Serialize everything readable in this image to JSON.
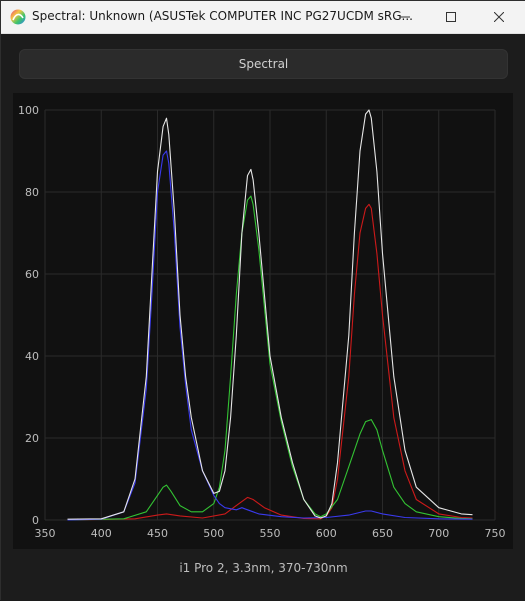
{
  "window": {
    "title": "Spectral: Unknown (ASUSTek COMPUTER INC PG27UCDM sRG..."
  },
  "toolbar": {
    "spectral_label": "Spectral"
  },
  "footer": {
    "caption": "i1 Pro 2, 3.3nm, 370-730nm"
  },
  "colors": {
    "background": "#111111",
    "grid": "#2a2a2a",
    "total": "#e6e6e6",
    "red": "#cc1a1a",
    "green": "#33c233",
    "blue": "#3a3aee"
  },
  "chart_data": {
    "type": "line",
    "title": "",
    "xlabel": "",
    "ylabel": "",
    "xlim": [
      350,
      750
    ],
    "ylim": [
      0,
      100
    ],
    "xticks": [
      350,
      400,
      450,
      500,
      550,
      600,
      650,
      700,
      750
    ],
    "yticks": [
      0,
      20,
      40,
      60,
      80,
      100
    ],
    "grid": true,
    "legend": "none",
    "series": [
      {
        "color": "#e6e6e6",
        "x": [
          370,
          400,
          420,
          430,
          440,
          445,
          450,
          455,
          458,
          460,
          465,
          470,
          475,
          480,
          490,
          500,
          505,
          510,
          515,
          520,
          525,
          530,
          533,
          535,
          540,
          545,
          550,
          560,
          570,
          580,
          590,
          595,
          600,
          605,
          610,
          620,
          625,
          630,
          635,
          638,
          640,
          645,
          650,
          660,
          670,
          680,
          700,
          720,
          730
        ],
        "y": [
          0.2,
          0.3,
          2,
          10,
          35,
          60,
          85,
          96,
          98,
          94,
          75,
          50,
          35,
          25,
          12,
          6.5,
          7,
          12,
          25,
          45,
          70,
          84,
          85.5,
          83,
          70,
          55,
          40,
          25,
          14,
          5,
          1,
          0.5,
          1,
          4,
          14,
          45,
          70,
          90,
          99,
          100,
          98,
          85,
          65,
          35,
          17,
          8,
          3,
          1.5,
          1.3
        ]
      },
      {
        "color": "#cc1a1a",
        "x": [
          370,
          430,
          450,
          458,
          470,
          490,
          510,
          520,
          530,
          535,
          545,
          560,
          580,
          595,
          600,
          605,
          610,
          620,
          625,
          630,
          635,
          638,
          640,
          645,
          650,
          660,
          670,
          680,
          700,
          720,
          730
        ],
        "y": [
          0,
          0.3,
          1.2,
          1.5,
          1.0,
          0.5,
          1.5,
          3.5,
          5.5,
          5.0,
          3.0,
          1.2,
          0.4,
          0.3,
          1,
          3,
          10,
          35,
          55,
          70,
          76,
          77,
          76,
          65,
          50,
          25,
          12,
          5,
          1.5,
          0.6,
          0.5
        ]
      },
      {
        "color": "#33c233",
        "x": [
          370,
          420,
          440,
          450,
          455,
          458,
          462,
          470,
          480,
          490,
          500,
          505,
          510,
          515,
          520,
          525,
          530,
          533,
          535,
          540,
          545,
          550,
          560,
          570,
          580,
          590,
          595,
          600,
          610,
          620,
          630,
          635,
          640,
          645,
          650,
          660,
          670,
          680,
          700,
          720,
          730
        ],
        "y": [
          0,
          0.3,
          2,
          6,
          8,
          8.5,
          7,
          3.5,
          2,
          2,
          4,
          8,
          17,
          35,
          55,
          70,
          78,
          79,
          77,
          66,
          52,
          38,
          24,
          13,
          5,
          1.5,
          0.8,
          1.5,
          5,
          13,
          21,
          24,
          24.5,
          22,
          17,
          8,
          4,
          2,
          0.8,
          0.4,
          0.3
        ]
      },
      {
        "color": "#3a3aee",
        "x": [
          370,
          400,
          420,
          430,
          440,
          445,
          450,
          455,
          458,
          460,
          465,
          470,
          475,
          480,
          490,
          500,
          505,
          510,
          520,
          525,
          530,
          540,
          560,
          580,
          600,
          620,
          635,
          640,
          650,
          670,
          700,
          730
        ],
        "y": [
          0,
          0.2,
          2,
          9,
          32,
          55,
          80,
          89,
          90,
          87,
          70,
          47,
          33,
          22,
          12,
          6,
          4,
          3,
          2.5,
          3,
          2.5,
          1.5,
          0.8,
          0.5,
          0.6,
          1.2,
          2.2,
          2.2,
          1.5,
          0.6,
          0.3,
          0.2
        ]
      }
    ]
  }
}
